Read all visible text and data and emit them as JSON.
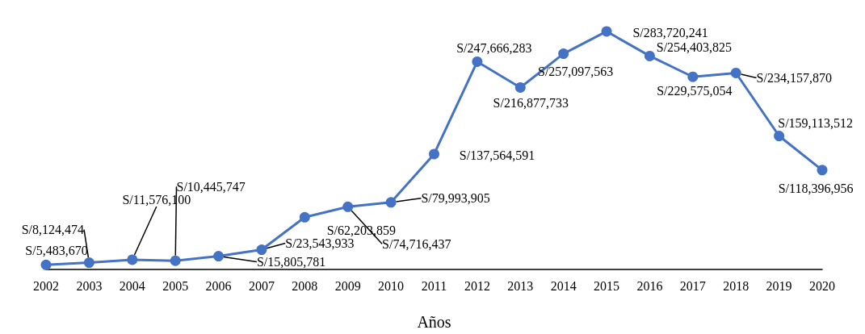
{
  "chart_data": {
    "type": "line",
    "xlabel": "Años",
    "categories": [
      "2002",
      "2003",
      "2004",
      "2005",
      "2006",
      "2007",
      "2008",
      "2009",
      "2010",
      "2011",
      "2012",
      "2013",
      "2014",
      "2015",
      "2016",
      "2017",
      "2018",
      "2019",
      "2020"
    ],
    "values": [
      5483670,
      8124474,
      11576100,
      10445747,
      15805781,
      23543933,
      62203859,
      74716437,
      79993905,
      137564591,
      247666283,
      216877733,
      257097563,
      283720241,
      254403825,
      229575054,
      234157870,
      159113512,
      118396956
    ],
    "value_labels": [
      "S/5,483,670",
      "S/8,124,474",
      "S/11,576,100",
      "S/10,445,747",
      "S/15,805,781",
      "S/23,543,933",
      "S/62,203,859",
      "S/74,716,437",
      "S/79,993,905",
      "S/137,564,591",
      "S/247,666,283",
      "S/216,877,733",
      "S/257,097,563",
      "S/283,720,241",
      "S/254,403,825",
      "S/229,575,054",
      "S/234,157,870",
      "S/159,113,512",
      "S/118,396,956"
    ],
    "color": "#4472c4",
    "marker": "circle",
    "line_style": "solid"
  }
}
